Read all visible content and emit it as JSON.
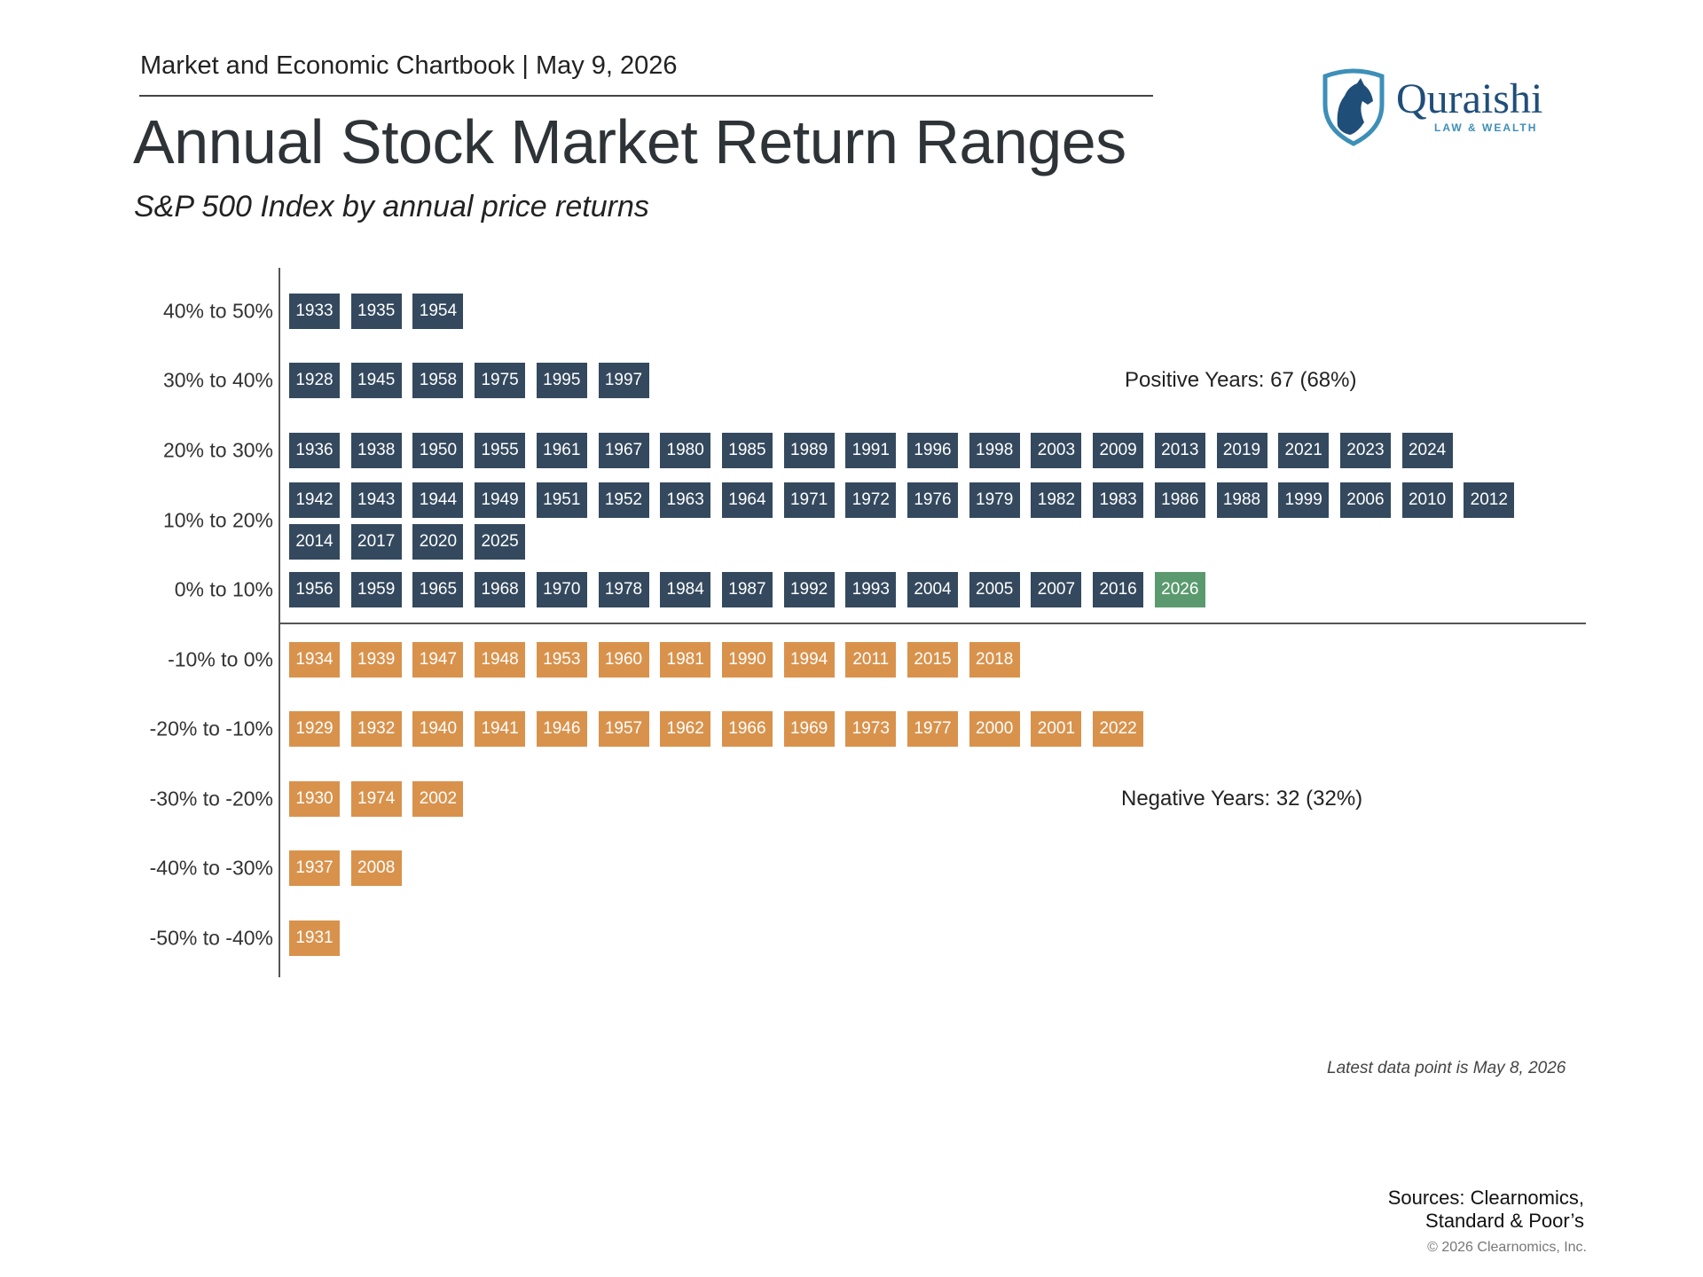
{
  "header": {
    "chartbook": "Market and Economic Chartbook | May 9, 2026",
    "title": "Annual Stock Market Return Ranges",
    "subtitle": "S&P 500 Index by annual price returns"
  },
  "logo": {
    "name": "Quraishi",
    "tagline": "LAW & WEALTH",
    "icon": "horse-shield-icon"
  },
  "colors": {
    "positive": "#34495e",
    "negative": "#d9924c",
    "current": "#5b9a6e"
  },
  "chart_data": {
    "type": "table",
    "title": "Annual Stock Market Return Ranges",
    "subtitle": "S&P 500 Index by annual price returns",
    "current_year": "2026",
    "rows": [
      {
        "range": "40% to 50%",
        "sign": "positive",
        "years": [
          "1933",
          "1935",
          "1954"
        ]
      },
      {
        "range": "30% to 40%",
        "sign": "positive",
        "years": [
          "1928",
          "1945",
          "1958",
          "1975",
          "1995",
          "1997"
        ]
      },
      {
        "range": "20% to 30%",
        "sign": "positive",
        "years": [
          "1936",
          "1938",
          "1950",
          "1955",
          "1961",
          "1967",
          "1980",
          "1985",
          "1989",
          "1991",
          "1996",
          "1998",
          "2003",
          "2009",
          "2013",
          "2019",
          "2021",
          "2023",
          "2024"
        ]
      },
      {
        "range": "10% to 20%",
        "sign": "positive",
        "years": [
          "1942",
          "1943",
          "1944",
          "1949",
          "1951",
          "1952",
          "1963",
          "1964",
          "1971",
          "1972",
          "1976",
          "1979",
          "1982",
          "1983",
          "1986",
          "1988",
          "1999",
          "2006",
          "2010",
          "2012",
          "2014",
          "2017",
          "2020",
          "2025"
        ]
      },
      {
        "range": "0% to 10%",
        "sign": "positive",
        "years": [
          "1956",
          "1959",
          "1965",
          "1968",
          "1970",
          "1978",
          "1984",
          "1987",
          "1992",
          "1993",
          "2004",
          "2005",
          "2007",
          "2016",
          "2026"
        ]
      },
      {
        "range": "-10% to 0%",
        "sign": "negative",
        "years": [
          "1934",
          "1939",
          "1947",
          "1948",
          "1953",
          "1960",
          "1981",
          "1990",
          "1994",
          "2011",
          "2015",
          "2018"
        ]
      },
      {
        "range": "-20% to -10%",
        "sign": "negative",
        "years": [
          "1929",
          "1932",
          "1940",
          "1941",
          "1946",
          "1957",
          "1962",
          "1966",
          "1969",
          "1973",
          "1977",
          "2000",
          "2001",
          "2022"
        ]
      },
      {
        "range": "-30% to -20%",
        "sign": "negative",
        "years": [
          "1930",
          "1974",
          "2002"
        ]
      },
      {
        "range": "-40% to -30%",
        "sign": "negative",
        "years": [
          "1937",
          "2008"
        ]
      },
      {
        "range": "-50% to -40%",
        "sign": "negative",
        "years": [
          "1931"
        ]
      }
    ],
    "annotations": {
      "positive": "Positive Years: 67 (68%)",
      "negative": "Negative Years: 32 (32%)"
    }
  },
  "footer": {
    "note": "Latest data point is May 8, 2026",
    "sources_line1": "Sources: Clearnomics,",
    "sources_line2": "Standard & Poor’s",
    "copyright": "© 2026 Clearnomics, Inc."
  }
}
